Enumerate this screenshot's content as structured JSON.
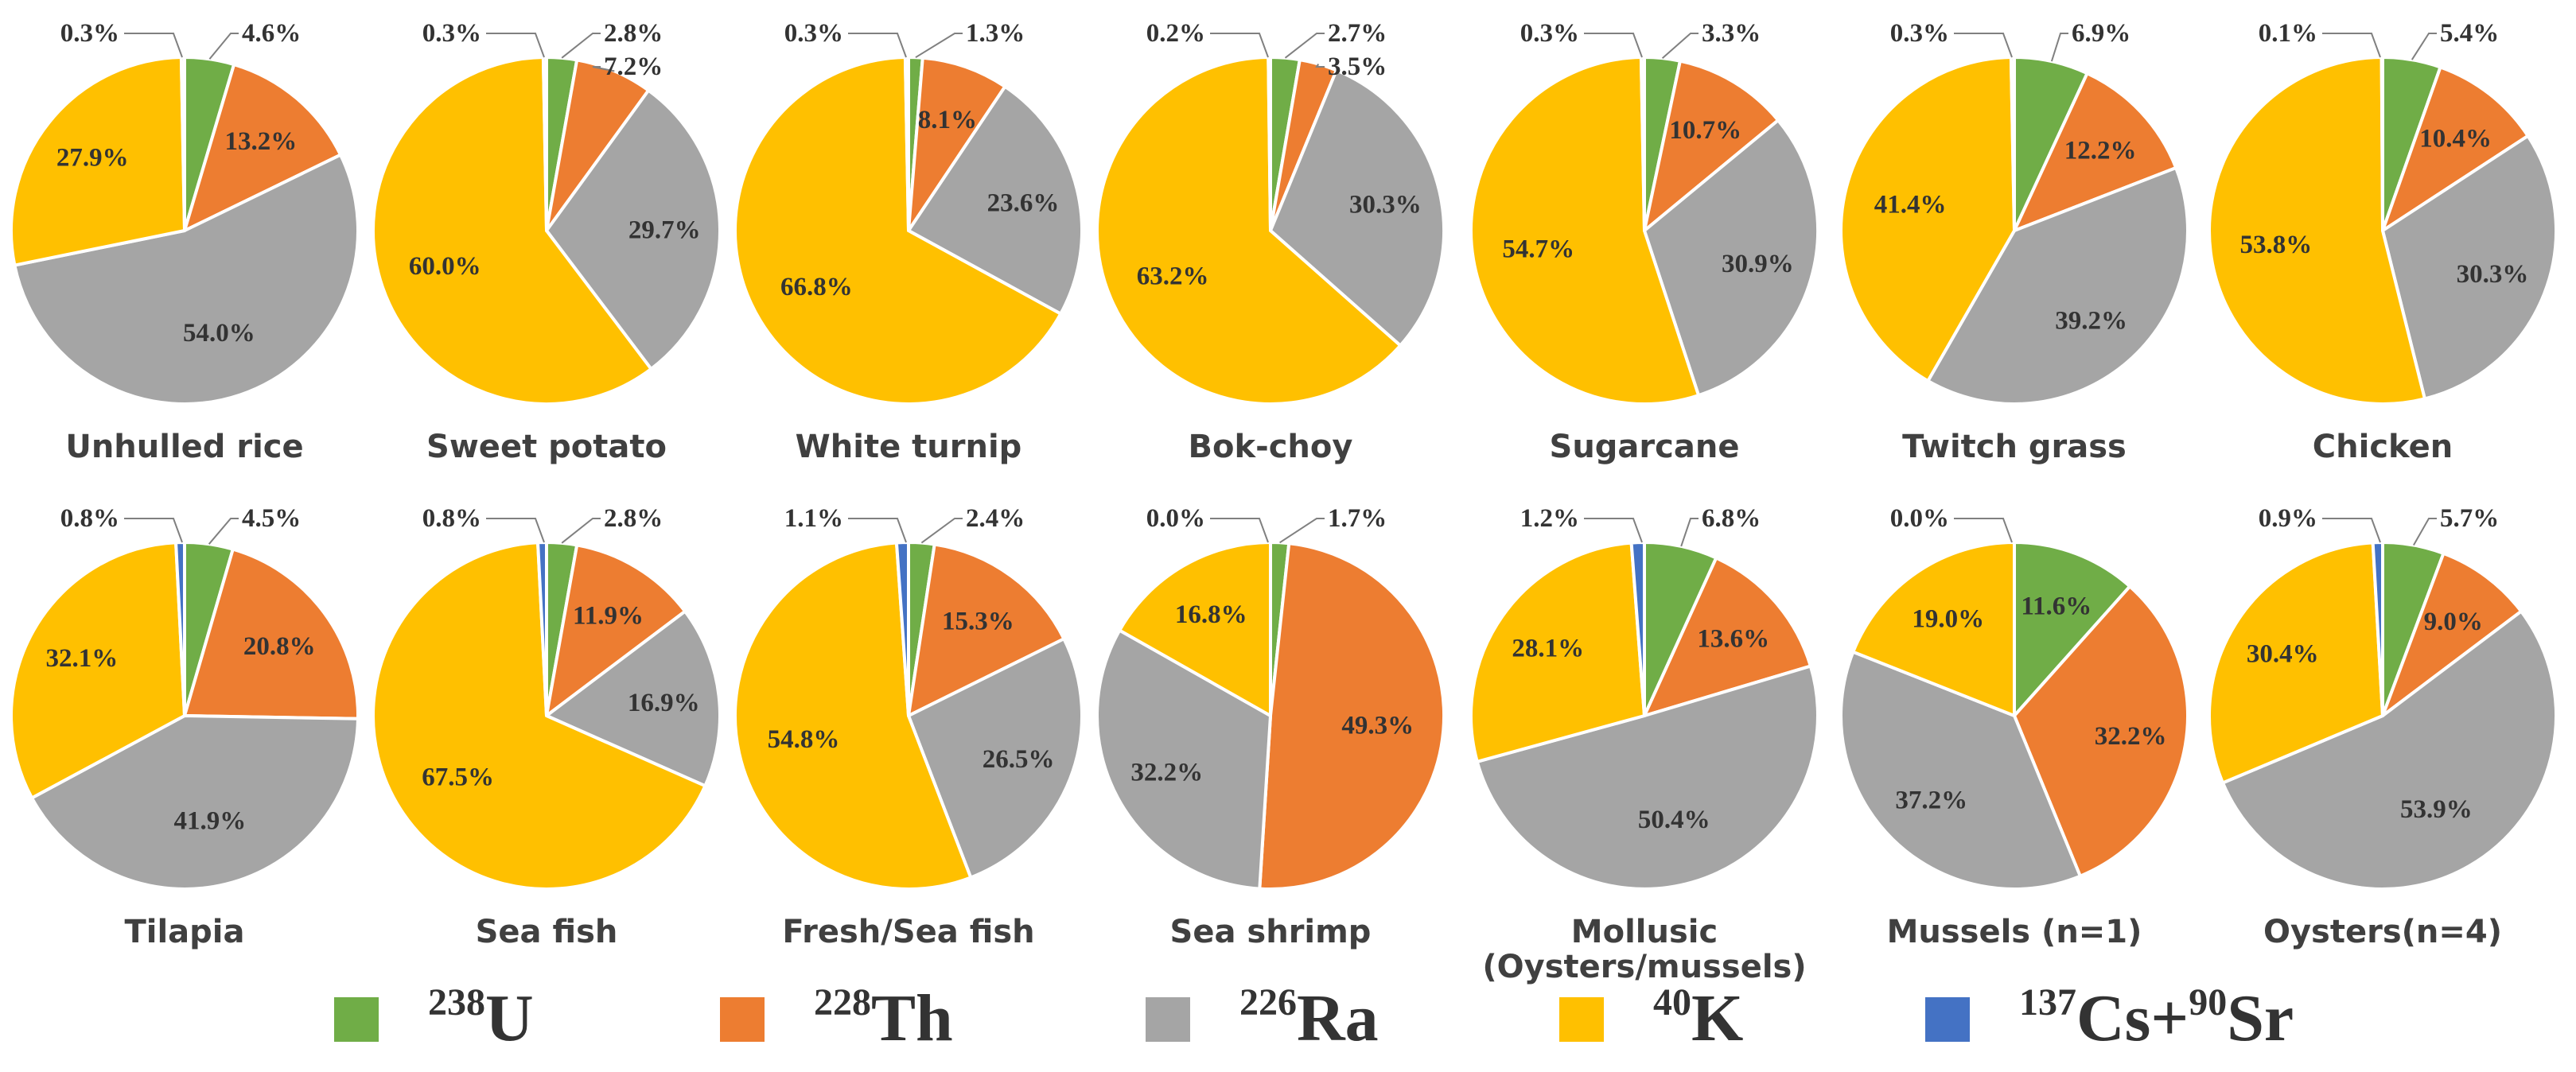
{
  "colors": {
    "238U": "#70AD47",
    "228Th": "#ED7D31",
    "226Ra": "#A5A5A5",
    "40K": "#FFC000",
    "137Cs+90Sr": "#4472C4"
  },
  "chart_data": {
    "type": "pie",
    "series_order": [
      "238U",
      "228Th",
      "226Ra",
      "40K",
      "137Cs+90Sr"
    ],
    "legend": {
      "placement": "bottom",
      "entries": [
        {
          "key": "238U",
          "parts": [
            {
              "sup": "238"
            },
            {
              "text": "U"
            }
          ]
        },
        {
          "key": "228Th",
          "parts": [
            {
              "sup": "228"
            },
            {
              "text": "Th"
            }
          ]
        },
        {
          "key": "226Ra",
          "parts": [
            {
              "sup": "226"
            },
            {
              "text": "Ra"
            }
          ]
        },
        {
          "key": "40K",
          "parts": [
            {
              "sup": "40"
            },
            {
              "text": "K"
            }
          ]
        },
        {
          "key": "137Cs+90Sr",
          "parts": [
            {
              "sup": "137"
            },
            {
              "text": "Cs+"
            },
            {
              "sup": "90"
            },
            {
              "text": "Sr"
            }
          ]
        }
      ]
    },
    "pies": [
      {
        "title": [
          "Unhulled rice"
        ],
        "values": [
          4.6,
          13.2,
          54.0,
          27.9,
          0.3
        ],
        "labels": [
          "4.6%",
          "13.2%",
          "54.0%",
          "27.9%",
          "0.3%"
        ]
      },
      {
        "title": [
          "Sweet potato"
        ],
        "values": [
          2.8,
          7.2,
          29.7,
          60.0,
          0.3
        ],
        "labels": [
          "2.8%",
          "7.2%",
          "29.7%",
          "60.0%",
          "0.3%"
        ]
      },
      {
        "title": [
          "White turnip"
        ],
        "values": [
          1.3,
          8.1,
          23.6,
          66.8,
          0.3
        ],
        "labels": [
          "1.3%",
          "8.1%",
          "23.6%",
          "66.8%",
          "0.3%"
        ]
      },
      {
        "title": [
          "Bok-choy"
        ],
        "values": [
          2.7,
          3.5,
          30.3,
          63.2,
          0.2
        ],
        "labels": [
          "2.7%",
          "3.5%",
          "30.3%",
          "63.2%",
          "0.2%"
        ]
      },
      {
        "title": [
          "Sugarcane"
        ],
        "values": [
          3.3,
          10.7,
          30.9,
          54.7,
          0.3
        ],
        "labels": [
          "3.3%",
          "10.7%",
          "30.9%",
          "54.7%",
          "0.3%"
        ]
      },
      {
        "title": [
          "Twitch grass"
        ],
        "values": [
          6.9,
          12.2,
          39.2,
          41.4,
          0.3
        ],
        "labels": [
          "6.9%",
          "12.2%",
          "39.2%",
          "41.4%",
          "0.3%"
        ]
      },
      {
        "title": [
          "Chicken"
        ],
        "values": [
          5.4,
          10.4,
          30.3,
          53.8,
          0.1
        ],
        "labels": [
          "5.4%",
          "10.4%",
          "30.3%",
          "53.8%",
          "0.1%"
        ]
      },
      {
        "title": [
          "Tilapia"
        ],
        "values": [
          4.5,
          20.8,
          41.9,
          32.1,
          0.8
        ],
        "labels": [
          "4.5%",
          "20.8%",
          "41.9%",
          "32.1%",
          "0.8%"
        ]
      },
      {
        "title": [
          "Sea fish"
        ],
        "values": [
          2.8,
          11.9,
          16.9,
          67.5,
          0.8
        ],
        "labels": [
          "2.8%",
          "11.9%",
          "16.9%",
          "67.5%",
          "0.8%"
        ]
      },
      {
        "title": [
          "Fresh/Sea fish"
        ],
        "values": [
          2.4,
          15.3,
          26.5,
          54.8,
          1.1
        ],
        "labels": [
          "2.4%",
          "15.3%",
          "26.5%",
          "54.8%",
          "1.1%"
        ]
      },
      {
        "title": [
          "Sea shrimp"
        ],
        "values": [
          1.7,
          49.3,
          32.2,
          16.8,
          0.0
        ],
        "labels": [
          "1.7%",
          "49.3%",
          "32.2%",
          "16.8%",
          "0.0%"
        ]
      },
      {
        "title": [
          "Mollusic",
          "(Oysters/mussels)"
        ],
        "values": [
          6.8,
          13.6,
          50.4,
          28.1,
          1.2
        ],
        "labels": [
          "6.8%",
          "13.6%",
          "50.4%",
          "28.1%",
          "1.2%"
        ]
      },
      {
        "title": [
          "Mussels (n=1)"
        ],
        "values": [
          11.6,
          32.2,
          37.2,
          19.0,
          0.0
        ],
        "labels": [
          "11.6%",
          "32.2%",
          "37.2%",
          "19.0%",
          "0.0%"
        ]
      },
      {
        "title": [
          "Oysters(n=4)"
        ],
        "values": [
          5.7,
          9.0,
          53.9,
          30.4,
          0.9
        ],
        "labels": [
          "5.7%",
          "9.0%",
          "53.9%",
          "30.4%",
          "0.9%"
        ]
      }
    ]
  }
}
